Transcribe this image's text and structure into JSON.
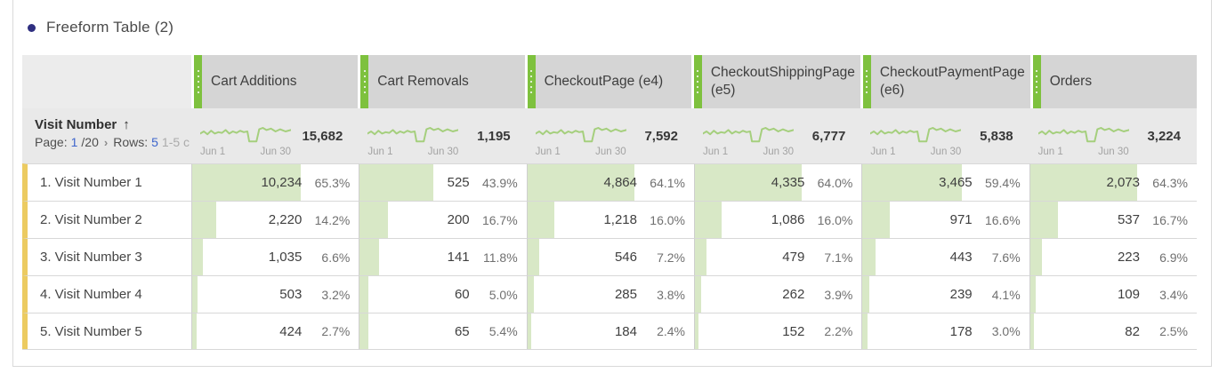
{
  "panel": {
    "title": "Freeform Table (2)"
  },
  "icons": {
    "sort_ascending": "↑",
    "chevron_right": "›"
  },
  "table": {
    "dimension": {
      "name": "Visit Number",
      "page_label": "Page:",
      "page_current": "1",
      "page_total": "/20",
      "rows_label": "Rows:",
      "rows_value": "5",
      "range_text": "1-5 c"
    },
    "spark_start": "Jun 1",
    "spark_end": "Jun 30",
    "columns": [
      {
        "label": "Cart Additions",
        "total": "15,682"
      },
      {
        "label": "Cart Removals",
        "total": "1,195"
      },
      {
        "label": "CheckoutPage (e4)",
        "total": "7,592"
      },
      {
        "label": "CheckoutShippingPage (e5)",
        "total": "6,777"
      },
      {
        "label": "CheckoutPaymentPage (e6)",
        "total": "5,838"
      },
      {
        "label": "Orders",
        "total": "3,224"
      }
    ],
    "rows": [
      {
        "label": "1. Visit Number 1",
        "cells": [
          {
            "value": "10,234",
            "pct": "65.3%",
            "bar_pct": 65.3
          },
          {
            "value": "525",
            "pct": "43.9%",
            "bar_pct": 43.9
          },
          {
            "value": "4,864",
            "pct": "64.1%",
            "bar_pct": 64.1
          },
          {
            "value": "4,335",
            "pct": "64.0%",
            "bar_pct": 64.0
          },
          {
            "value": "3,465",
            "pct": "59.4%",
            "bar_pct": 59.4
          },
          {
            "value": "2,073",
            "pct": "64.3%",
            "bar_pct": 64.3
          }
        ]
      },
      {
        "label": "2. Visit Number 2",
        "cells": [
          {
            "value": "2,220",
            "pct": "14.2%",
            "bar_pct": 14.2
          },
          {
            "value": "200",
            "pct": "16.7%",
            "bar_pct": 16.7
          },
          {
            "value": "1,218",
            "pct": "16.0%",
            "bar_pct": 16.0
          },
          {
            "value": "1,086",
            "pct": "16.0%",
            "bar_pct": 16.0
          },
          {
            "value": "971",
            "pct": "16.6%",
            "bar_pct": 16.6
          },
          {
            "value": "537",
            "pct": "16.7%",
            "bar_pct": 16.7
          }
        ]
      },
      {
        "label": "3. Visit Number 3",
        "cells": [
          {
            "value": "1,035",
            "pct": "6.6%",
            "bar_pct": 6.6
          },
          {
            "value": "141",
            "pct": "11.8%",
            "bar_pct": 11.8
          },
          {
            "value": "546",
            "pct": "7.2%",
            "bar_pct": 7.2
          },
          {
            "value": "479",
            "pct": "7.1%",
            "bar_pct": 7.1
          },
          {
            "value": "443",
            "pct": "7.6%",
            "bar_pct": 7.6
          },
          {
            "value": "223",
            "pct": "6.9%",
            "bar_pct": 6.9
          }
        ]
      },
      {
        "label": "4. Visit Number 4",
        "cells": [
          {
            "value": "503",
            "pct": "3.2%",
            "bar_pct": 3.2
          },
          {
            "value": "60",
            "pct": "5.0%",
            "bar_pct": 5.0
          },
          {
            "value": "285",
            "pct": "3.8%",
            "bar_pct": 3.8
          },
          {
            "value": "262",
            "pct": "3.9%",
            "bar_pct": 3.9
          },
          {
            "value": "239",
            "pct": "4.1%",
            "bar_pct": 4.1
          },
          {
            "value": "109",
            "pct": "3.4%",
            "bar_pct": 3.4
          }
        ]
      },
      {
        "label": "5. Visit Number 5",
        "cells": [
          {
            "value": "424",
            "pct": "2.7%",
            "bar_pct": 2.7
          },
          {
            "value": "65",
            "pct": "5.4%",
            "bar_pct": 5.4
          },
          {
            "value": "184",
            "pct": "2.4%",
            "bar_pct": 2.4
          },
          {
            "value": "152",
            "pct": "2.2%",
            "bar_pct": 2.2
          },
          {
            "value": "178",
            "pct": "3.0%",
            "bar_pct": 3.0
          },
          {
            "value": "82",
            "pct": "2.5%",
            "bar_pct": 2.5
          }
        ]
      }
    ]
  },
  "colors": {
    "drag_handle_green": "#7ec13e",
    "bar_green": "#d8e8c6",
    "sparkline_green": "#a5cf7d",
    "row_accent_yellow": "#eccb61",
    "link_blue": "#3d65cc",
    "bullet_navy": "#2f2f80"
  }
}
